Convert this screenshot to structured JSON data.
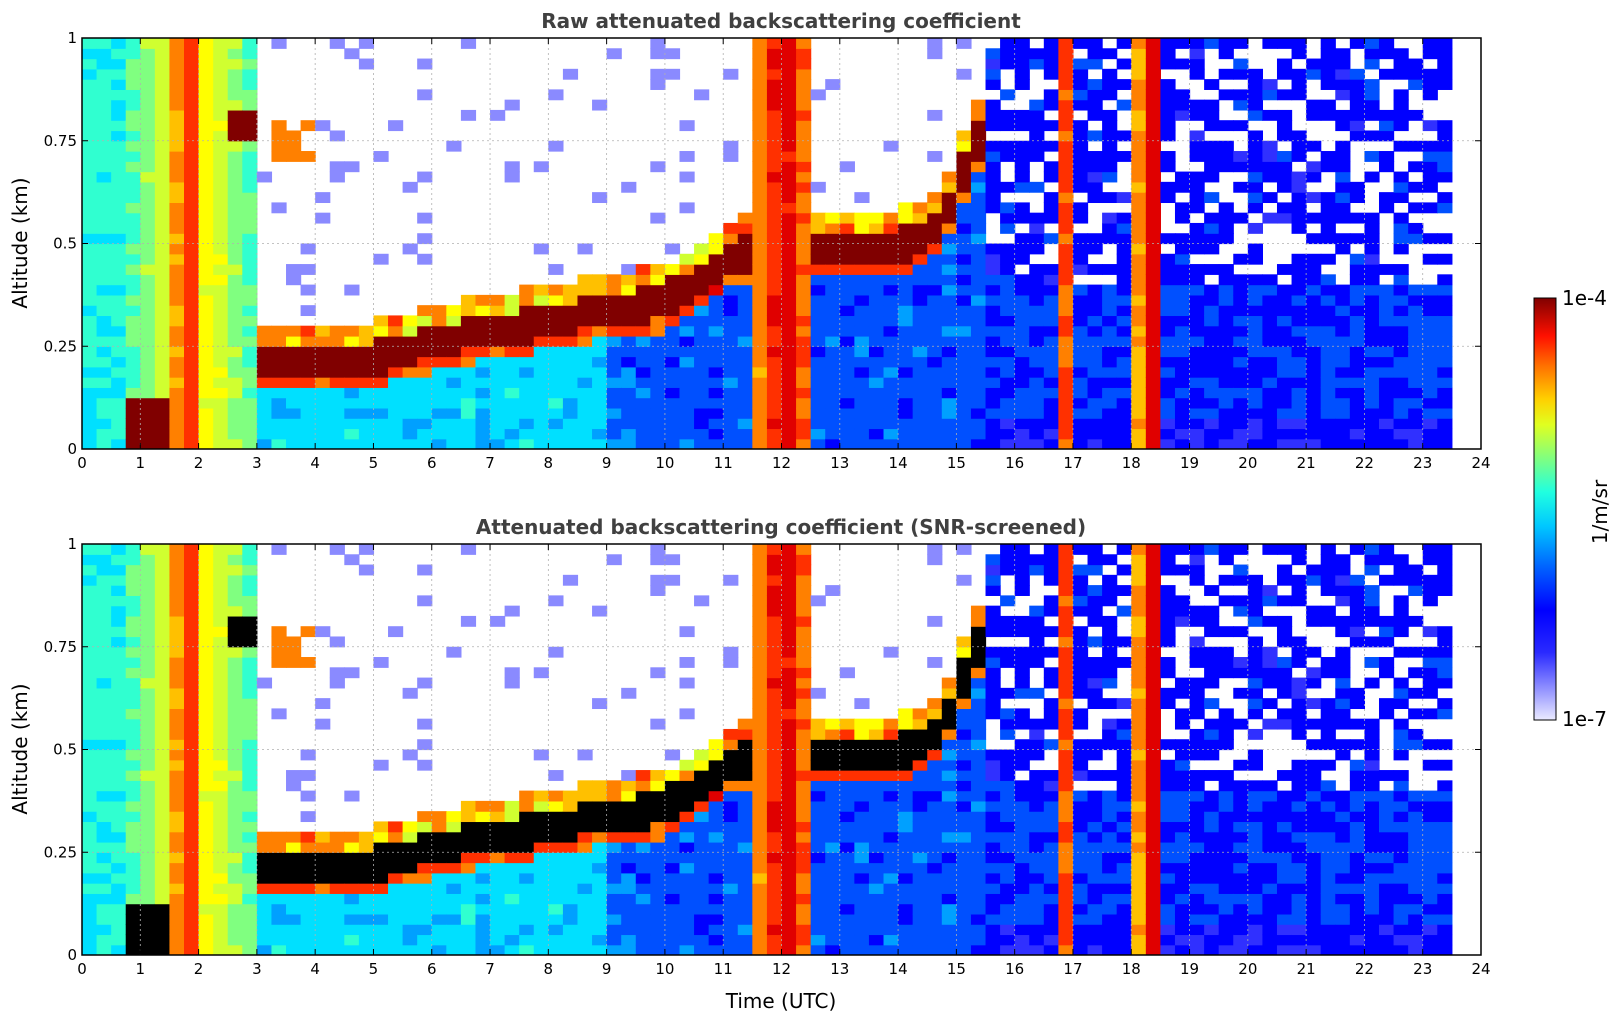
{
  "chart_data": [
    {
      "type": "heatmap",
      "title": "Raw attenuated backscattering coefficient",
      "xlabel": "",
      "ylabel": "Altitude (km)",
      "xlim": [
        0,
        24
      ],
      "ylim": [
        0,
        1
      ],
      "x_ticks": [
        "0",
        "1",
        "2",
        "3",
        "4",
        "5",
        "6",
        "7",
        "8",
        "9",
        "10",
        "11",
        "12",
        "13",
        "14",
        "15",
        "16",
        "17",
        "18",
        "19",
        "20",
        "21",
        "22",
        "23",
        "24"
      ],
      "y_ticks": [
        "0",
        "0.25",
        "0.5",
        "0.75",
        "1"
      ],
      "grid": true,
      "features": {
        "cloud_layer_base_km": [
          [
            3.0,
            0.18
          ],
          [
            4.0,
            0.17
          ],
          [
            5.0,
            0.18
          ],
          [
            6.0,
            0.22
          ],
          [
            7.0,
            0.25
          ],
          [
            8.0,
            0.27
          ],
          [
            9.0,
            0.3
          ],
          [
            10.0,
            0.32
          ],
          [
            11.0,
            0.42
          ],
          [
            12.0,
            0.46
          ],
          [
            13.0,
            0.45
          ],
          [
            14.0,
            0.45
          ],
          [
            14.7,
            0.5
          ],
          [
            15.5,
            0.75
          ]
        ],
        "precipitation_columns_utc": [
          [
            1.6,
            2.0
          ],
          [
            11.5,
            12.6
          ],
          [
            16.8,
            17.1
          ],
          [
            18.1,
            18.6
          ]
        ],
        "low_aerosol_patch_utc": [
          [
            0.7,
            2.1
          ]
        ],
        "data_end_utc": 23.6
      }
    },
    {
      "type": "heatmap",
      "title": "Attenuated backscattering coefficient (SNR-screened)",
      "xlabel": "Time (UTC)",
      "ylabel": "Altitude (km)",
      "xlim": [
        0,
        24
      ],
      "ylim": [
        0,
        1
      ],
      "x_ticks": [
        "0",
        "1",
        "2",
        "3",
        "4",
        "5",
        "6",
        "7",
        "8",
        "9",
        "10",
        "11",
        "12",
        "13",
        "14",
        "15",
        "16",
        "17",
        "18",
        "19",
        "20",
        "21",
        "22",
        "23",
        "24"
      ],
      "y_ticks": [
        "0",
        "0.25",
        "0.5",
        "0.75",
        "1"
      ],
      "grid": true,
      "features": {
        "saturated_values_rendered": "black",
        "data_end_utc": 23.6
      }
    }
  ],
  "colorbar": {
    "label": "1/m/sr",
    "max_label": "1e-4",
    "min_label": "1e-7",
    "scale": "log",
    "colormap": [
      "#eaeaff",
      "#8a8aff",
      "#3030ff",
      "#0000ff",
      "#0050ff",
      "#00a0ff",
      "#00e0ff",
      "#30ffd0",
      "#80ff80",
      "#d0ff30",
      "#ffff00",
      "#ffc000",
      "#ff8000",
      "#ff3000",
      "#e00000",
      "#800000"
    ]
  }
}
